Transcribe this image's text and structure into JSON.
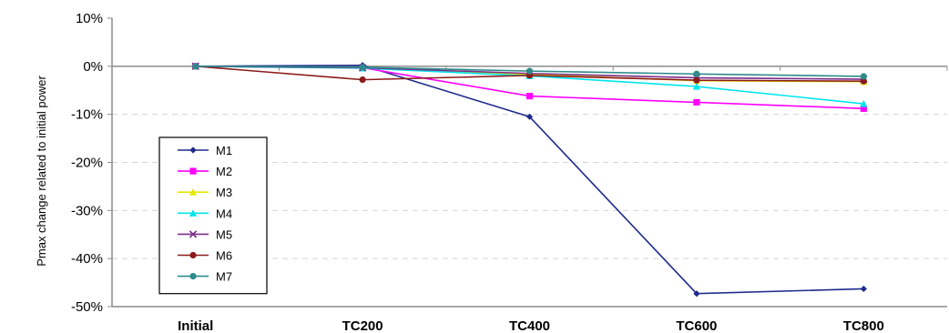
{
  "chart_data": {
    "type": "line",
    "title": "",
    "xlabel": "",
    "ylabel": "Pmax change related to initial power",
    "categories": [
      "Initial",
      "TC200",
      "TC400",
      "TC600",
      "TC800"
    ],
    "ylim": [
      -50,
      10
    ],
    "yticks": [
      10,
      0,
      -10,
      -20,
      -30,
      -40,
      -50
    ],
    "ytick_labels": [
      "10%",
      "0%",
      "-10%",
      "-20%",
      "-30%",
      "-40%",
      "-50%"
    ],
    "y_unit": "%",
    "grid": "horizontal dashed",
    "legend_position": "left",
    "series": [
      {
        "name": "M1",
        "values": [
          0,
          0.2,
          -10.5,
          -47.3,
          -46.3
        ],
        "color": "#1f2a8c",
        "marker": "diamond"
      },
      {
        "name": "M2",
        "values": [
          0,
          -0.3,
          -6.2,
          -7.5,
          -8.8
        ],
        "color": "#ff00ff",
        "marker": "square"
      },
      {
        "name": "M3",
        "values": [
          0,
          -0.3,
          -1.7,
          -3.0,
          -3.2
        ],
        "color": "#e8e800",
        "marker": "triangle"
      },
      {
        "name": "M4",
        "values": [
          0,
          -0.4,
          -2.0,
          -4.2,
          -7.8
        ],
        "color": "#00e5ee",
        "marker": "triangle"
      },
      {
        "name": "M5",
        "values": [
          0,
          -0.3,
          -1.5,
          -2.4,
          -2.7
        ],
        "color": "#7b2d8b",
        "marker": "x"
      },
      {
        "name": "M6",
        "values": [
          0,
          -2.8,
          -1.9,
          -2.9,
          -3.1
        ],
        "color": "#8b1a1a",
        "marker": "circle"
      },
      {
        "name": "M7",
        "values": [
          0,
          -0.2,
          -1.0,
          -1.6,
          -2.1
        ],
        "color": "#2e8b8b",
        "marker": "circle"
      }
    ]
  }
}
